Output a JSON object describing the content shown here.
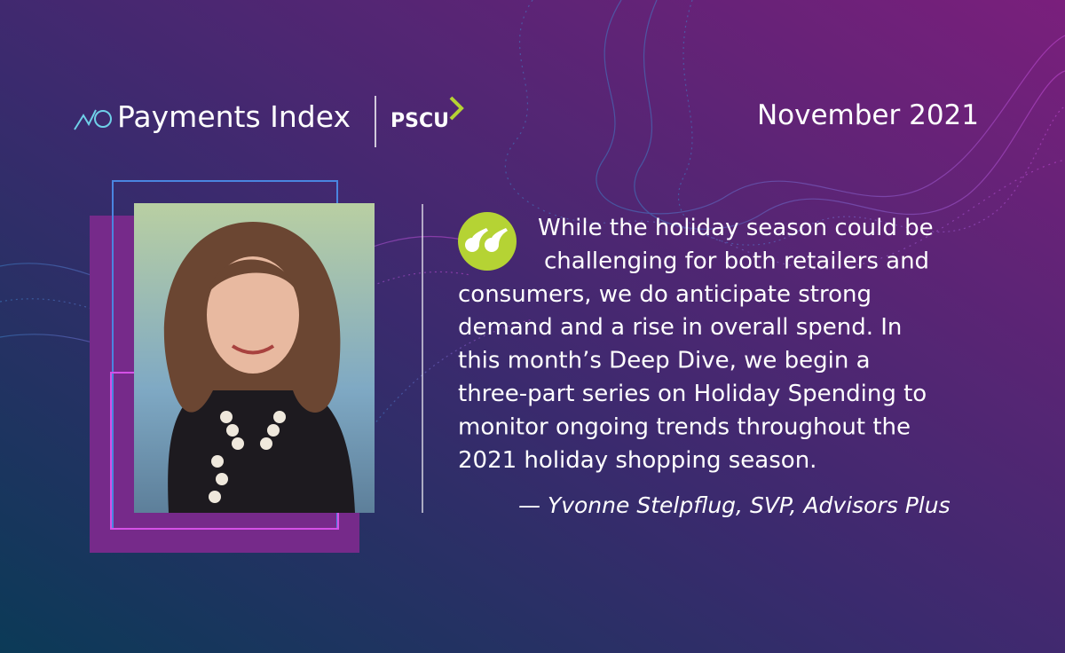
{
  "header": {
    "brand": "Payments Index",
    "logo": "PSCU",
    "date": "November 2021"
  },
  "quote": {
    "lines": [
      "While the holiday season could be",
      "challenging for both retailers and",
      "consumers, we do anticipate strong",
      "demand and a rise in overall spend. In",
      "this month’s Deep Dive, we begin a",
      "three-part series on Holiday Spending to",
      "monitor ongoing trends throughout the",
      "2021 holiday shopping season."
    ],
    "attribution": "— Yvonne Stelpflug, SVP, Advisors Plus"
  }
}
